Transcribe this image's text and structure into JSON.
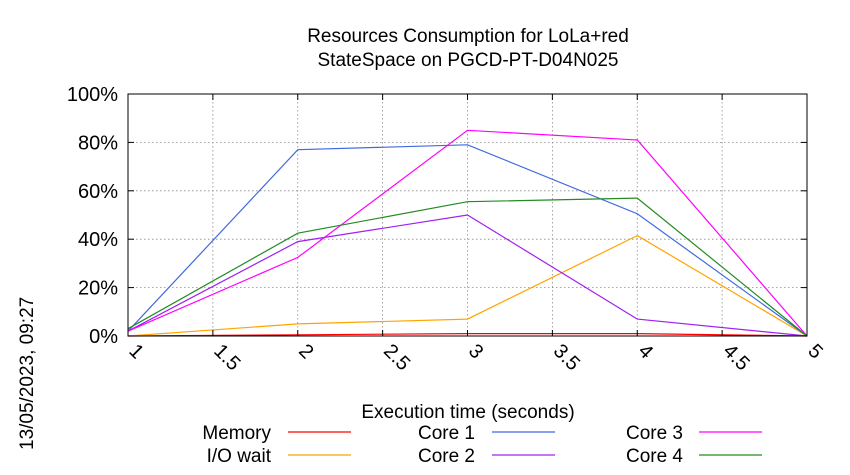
{
  "timestamp": "13/05/2023, 09:27",
  "chart_data": {
    "type": "line",
    "title": [
      "Resources Consumption for LoLa+red",
      "StateSpace on PGCD-PT-D04N025"
    ],
    "xlabel": "Execution time (seconds)",
    "ylabel": "",
    "xlim": [
      1,
      5
    ],
    "ylim": [
      0,
      100
    ],
    "x_ticks": [
      "1",
      "1.5",
      "2",
      "2.5",
      "3",
      "3.5",
      "4",
      "4.5",
      "5"
    ],
    "y_ticks": [
      "0%",
      "20%",
      "40%",
      "60%",
      "80%",
      "100%"
    ],
    "grid": true,
    "legend_position": "bottom",
    "x": [
      1,
      2,
      3,
      4,
      5
    ],
    "series": [
      {
        "name": "Memory",
        "color": "#ff0000",
        "values": [
          0,
          0.5,
          1,
          1,
          0
        ]
      },
      {
        "name": "I/O wait",
        "color": "#ffa500",
        "values": [
          0,
          5,
          7,
          41.5,
          0
        ]
      },
      {
        "name": "Core 1",
        "color": "#4169e1",
        "values": [
          2,
          77,
          79,
          50.5,
          0
        ]
      },
      {
        "name": "Core 2",
        "color": "#a020f0",
        "values": [
          2,
          39,
          50,
          7,
          0
        ]
      },
      {
        "name": "Core 3",
        "color": "#ff00ff",
        "values": [
          2,
          32.5,
          85,
          81,
          0
        ]
      },
      {
        "name": "Core 4",
        "color": "#228b22",
        "values": [
          3,
          42.5,
          55.5,
          57,
          0
        ]
      }
    ]
  }
}
